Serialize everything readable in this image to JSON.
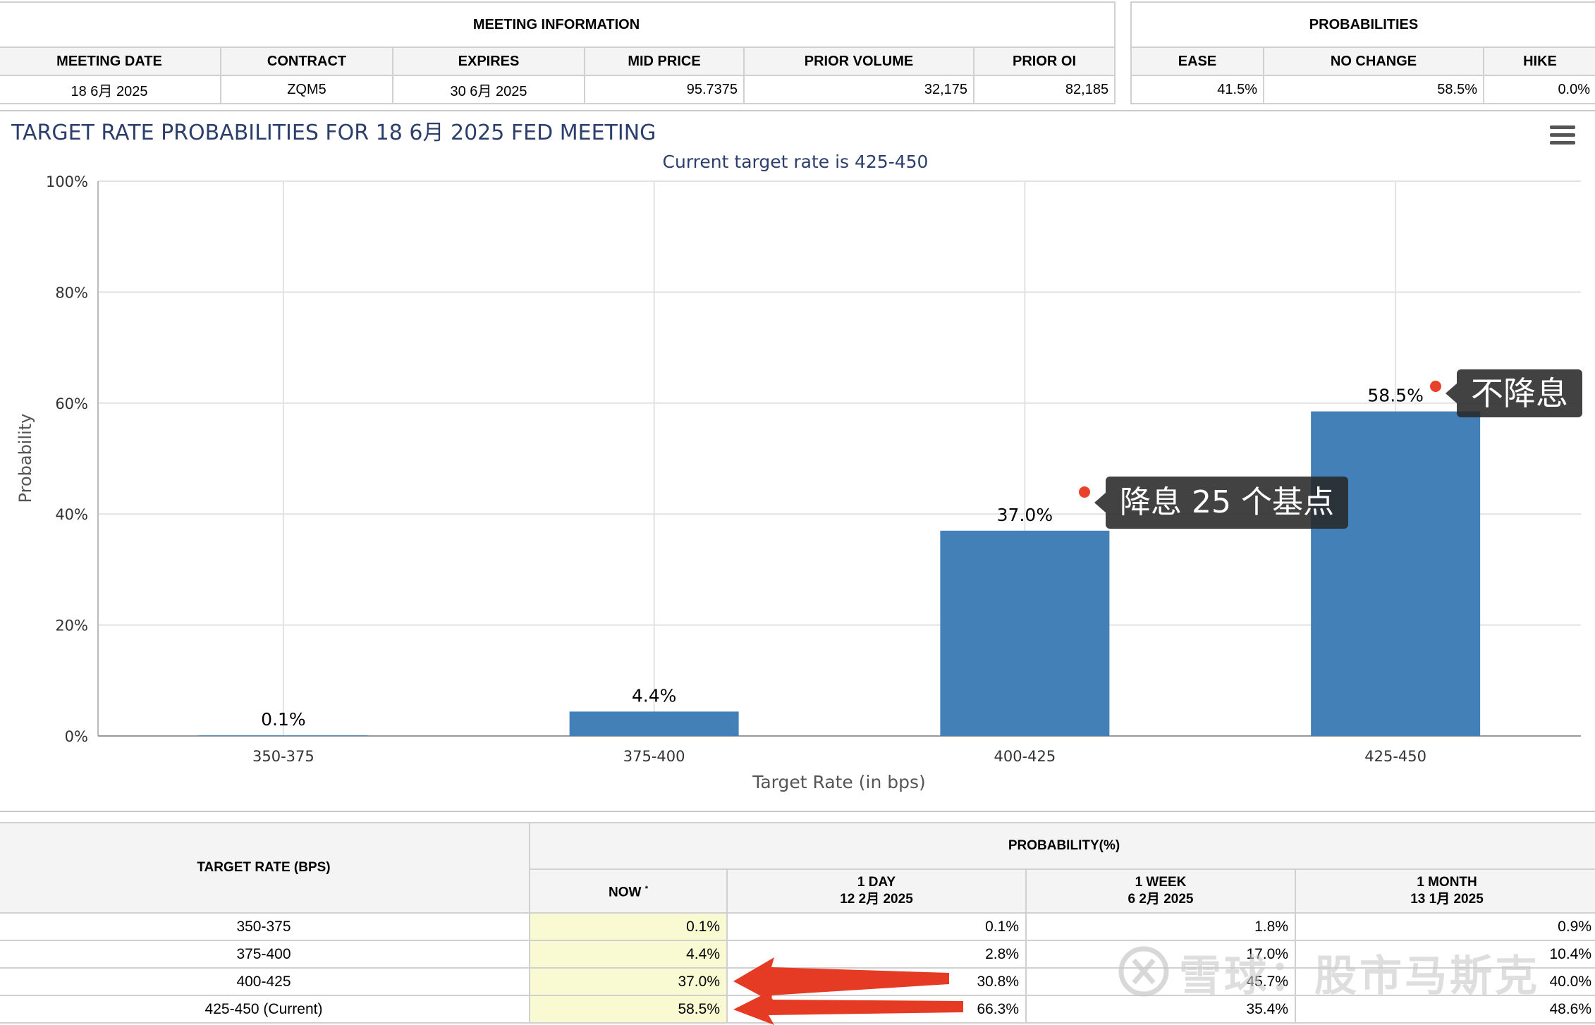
{
  "meeting": {
    "header": "MEETING INFORMATION",
    "columns": [
      "MEETING DATE",
      "CONTRACT",
      "EXPIRES",
      "MID PRICE",
      "PRIOR VOLUME",
      "PRIOR OI"
    ],
    "values": [
      "18 6月 2025",
      "ZQM5",
      "30 6月 2025",
      "95.7375",
      "32,175",
      "82,185"
    ]
  },
  "probabilities": {
    "header": "PROBABILITIES",
    "columns": [
      "EASE",
      "NO CHANGE",
      "HIKE"
    ],
    "values": [
      "41.5%",
      "58.5%",
      "0.0%"
    ]
  },
  "chart_data": {
    "type": "bar",
    "title": "TARGET RATE PROBABILITIES FOR 18 6月 2025 FED MEETING",
    "subtitle": "Current target rate is 425-450",
    "xlabel": "Target Rate (in bps)",
    "ylabel": "Probability",
    "categories": [
      "350-375",
      "375-400",
      "400-425",
      "425-450"
    ],
    "values": [
      0.1,
      4.4,
      37.0,
      58.5
    ],
    "data_labels": [
      "0.1%",
      "4.4%",
      "37.0%",
      "58.5%"
    ],
    "ylim": [
      0,
      100
    ],
    "yticks": [
      0,
      20,
      40,
      60,
      80,
      100
    ],
    "ytick_labels": [
      "0%",
      "20%",
      "40%",
      "60%",
      "80%",
      "100%"
    ],
    "bar_color": "#4480b8",
    "grid": true
  },
  "annotations": {
    "cut_label": "降息 25 个基点",
    "hold_label": "不降息",
    "dot_color": "#e8412c"
  },
  "rate_table": {
    "row_header": "TARGET RATE (BPS)",
    "group_header": "PROBABILITY(%)",
    "col_now": "NOW",
    "col_now_mark": "*",
    "cols": [
      {
        "line1": "1 DAY",
        "line2": "12 2月 2025"
      },
      {
        "line1": "1 WEEK",
        "line2": "6 2月 2025"
      },
      {
        "line1": "1 MONTH",
        "line2": "13 1月 2025"
      }
    ],
    "rows": [
      {
        "rate": "350-375",
        "now": "0.1%",
        "day": "0.1%",
        "week": "1.8%",
        "month": "0.9%"
      },
      {
        "rate": "375-400",
        "now": "4.4%",
        "day": "2.8%",
        "week": "17.0%",
        "month": "10.4%"
      },
      {
        "rate": "400-425",
        "now": "37.0%",
        "day": "30.8%",
        "week": "45.7%",
        "month": "40.0%"
      },
      {
        "rate": "425-450 (Current)",
        "now": "58.5%",
        "day": "66.3%",
        "week": "35.4%",
        "month": "48.6%"
      }
    ]
  },
  "watermark": "雪球：股市马斯克"
}
